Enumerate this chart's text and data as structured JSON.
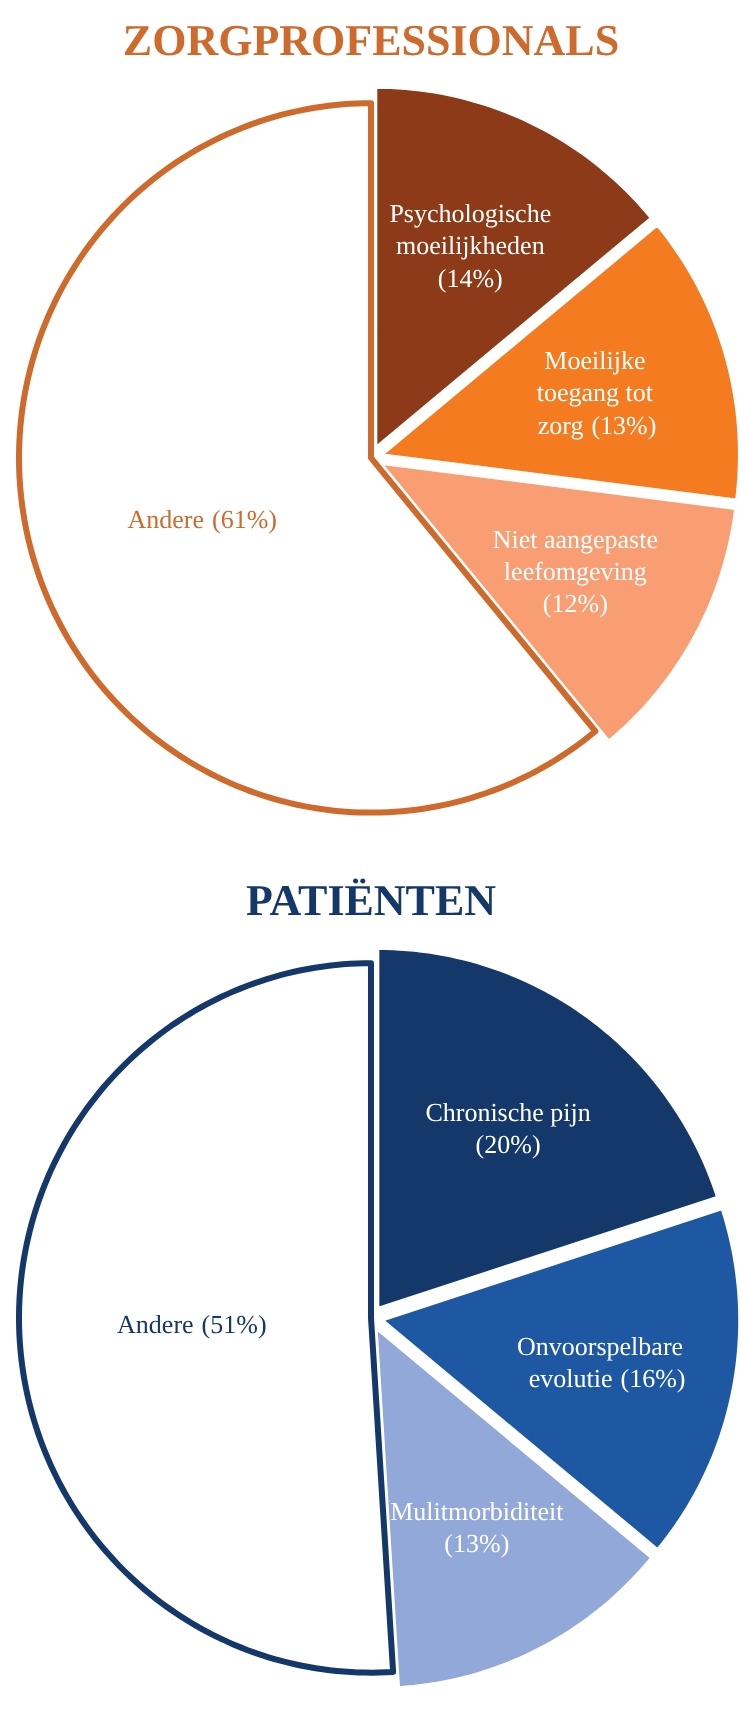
{
  "chart_data": [
    {
      "type": "pie",
      "title": "ZORGPROFESSIONALS",
      "color": "#cd6a2c",
      "categories": [
        "Psychologische moeilijkheden",
        "Moeilijke toegang tot zorg",
        "Niet aangepaste leefomgeving",
        "Andere"
      ],
      "values": [
        14,
        13,
        12,
        61
      ],
      "value_labels": [
        "(14%)",
        "(13%)",
        "(12%)",
        "(61%)"
      ],
      "colors": [
        "#8c3a17",
        "#f47b20",
        "#f99d72",
        "#ffffff"
      ]
    },
    {
      "type": "pie",
      "title": "PATIËNTEN",
      "color": "#15386a",
      "categories": [
        "Chronische pijn",
        "Onvoorspelbare evolutie",
        "Mulitmorbiditeit",
        "Andere"
      ],
      "values": [
        20,
        16,
        13,
        51
      ],
      "value_labels": [
        "(20%)",
        "(16%)",
        "(13%)",
        "(51%)"
      ],
      "colors": [
        "#15386a",
        "#1f58a2",
        "#92a8d9",
        "#ffffff"
      ]
    }
  ]
}
